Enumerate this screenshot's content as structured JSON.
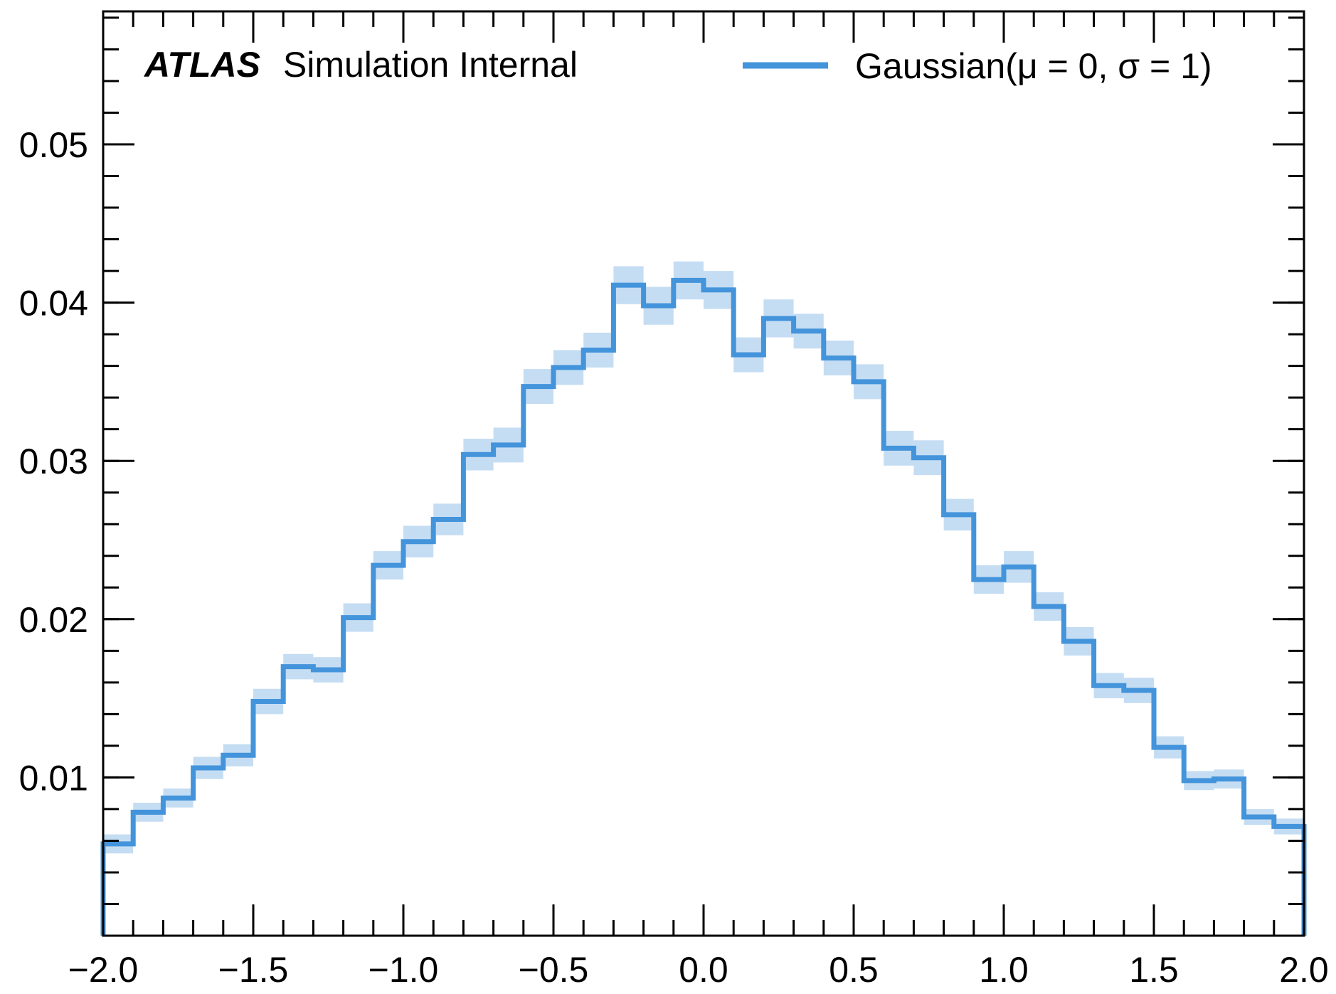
{
  "chart_data": {
    "type": "histogram",
    "x_bin_edges": [
      -2.0,
      -1.9,
      -1.8,
      -1.7,
      -1.6,
      -1.5,
      -1.4,
      -1.3,
      -1.2,
      -1.1,
      -1.0,
      -0.9,
      -0.8,
      -0.7,
      -0.6,
      -0.5,
      -0.4,
      -0.3,
      -0.2,
      -0.1,
      0.0,
      0.1,
      0.2,
      0.3,
      0.4,
      0.5,
      0.6,
      0.7,
      0.8,
      0.9,
      1.0,
      1.1,
      1.2,
      1.3,
      1.4,
      1.5,
      1.6,
      1.7,
      1.8,
      1.9,
      2.0
    ],
    "series": [
      {
        "name": "Gaussian(μ = 0, σ = 1)",
        "color": "#4394db",
        "band_color": "#c5ddf3",
        "values": [
          0.0058,
          0.0078,
          0.0087,
          0.0106,
          0.0114,
          0.0148,
          0.017,
          0.0168,
          0.0201,
          0.0234,
          0.0249,
          0.0263,
          0.0304,
          0.031,
          0.0347,
          0.0359,
          0.037,
          0.0411,
          0.0398,
          0.0414,
          0.0408,
          0.0367,
          0.039,
          0.0382,
          0.0365,
          0.035,
          0.0308,
          0.0302,
          0.0266,
          0.0225,
          0.0233,
          0.0208,
          0.0186,
          0.0158,
          0.0155,
          0.0119,
          0.0098,
          0.0099,
          0.0075,
          0.0069
        ],
        "uncertainty": [
          0.0006,
          0.0006,
          0.0006,
          0.0007,
          0.0007,
          0.0008,
          0.0008,
          0.0008,
          0.0009,
          0.0009,
          0.001,
          0.001,
          0.001,
          0.0011,
          0.0011,
          0.0011,
          0.0011,
          0.0012,
          0.0012,
          0.0012,
          0.0012,
          0.0011,
          0.0012,
          0.0011,
          0.0011,
          0.0011,
          0.0011,
          0.0011,
          0.001,
          0.0009,
          0.001,
          0.0009,
          0.0009,
          0.0008,
          0.0008,
          0.0007,
          0.0006,
          0.0006,
          0.0005,
          0.0005
        ]
      }
    ],
    "xlim": [
      -2.0,
      2.0
    ],
    "ylim": [
      0.0,
      0.0584
    ],
    "x_ticks": [
      -2.0,
      -1.5,
      -1.0,
      -0.5,
      0.0,
      0.5,
      1.0,
      1.5,
      2.0
    ],
    "x_tick_labels": [
      "−2.0",
      "−1.5",
      "−1.0",
      "−0.5",
      "0.0",
      "0.5",
      "1.0",
      "1.5",
      "2.0"
    ],
    "y_ticks": [
      0.01,
      0.02,
      0.03,
      0.04,
      0.05
    ],
    "y_tick_labels": [
      "0.01",
      "0.02",
      "0.03",
      "0.04",
      "0.05"
    ],
    "x_minor_step": 0.1,
    "y_minor_step": 0.002,
    "grid": false,
    "legend_position": "top-right",
    "annotation": {
      "bold": "ATLAS",
      "text": "Simulation Internal",
      "position": "top-left"
    }
  }
}
